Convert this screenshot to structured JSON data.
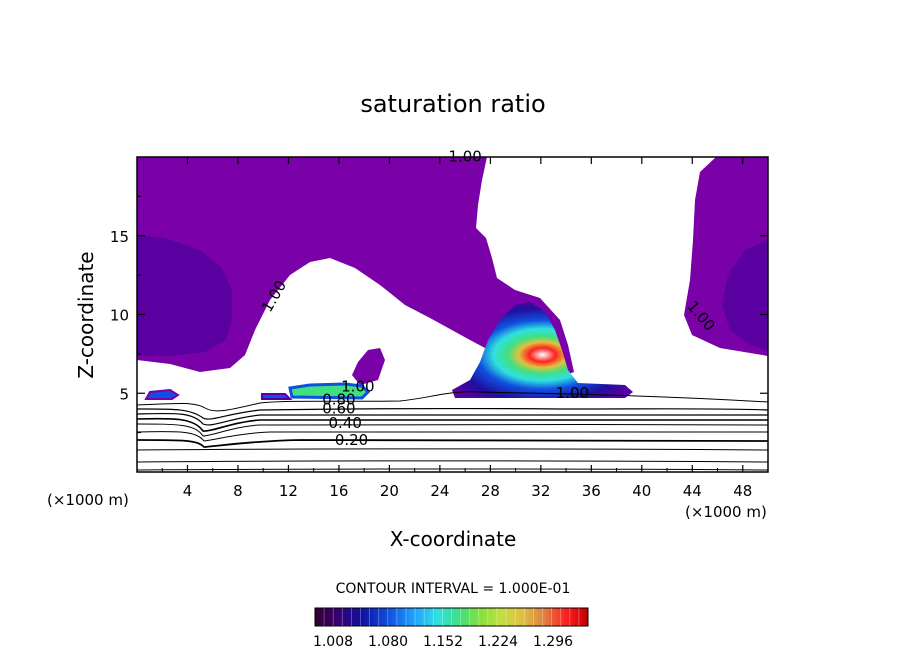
{
  "chart_data": {
    "type": "contour",
    "title": "saturation ratio",
    "xlabel": "X-coordinate",
    "ylabel": "Z-coordinate",
    "x_unit": "(×1000 m)",
    "x_ticks": [
      4,
      8,
      12,
      16,
      20,
      24,
      28,
      32,
      36,
      40,
      44,
      48
    ],
    "y_ticks": [
      5,
      10,
      15
    ],
    "xlim": [
      0,
      50
    ],
    "ylim": [
      0,
      20
    ],
    "contour_labels": [
      {
        "text": "1.00",
        "x": 26.0,
        "z": 19.7
      },
      {
        "text": "1.00",
        "x": 11.2,
        "z": 11.0
      },
      {
        "text": "1.00",
        "x": 44.4,
        "z": 9.7
      },
      {
        "text": "1.00",
        "x": 17.5,
        "z": 5.1
      },
      {
        "text": "1.00",
        "x": 34.5,
        "z": 4.7
      },
      {
        "text": "0.80",
        "x": 16.0,
        "z": 4.3
      },
      {
        "text": "0.60",
        "x": 16.0,
        "z": 3.7
      },
      {
        "text": "0.40",
        "x": 16.5,
        "z": 2.8
      },
      {
        "text": "0.20",
        "x": 17.0,
        "z": 1.7
      }
    ],
    "contour_interval_text": "CONTOUR INTERVAL = 1.000E-01",
    "colorbar": {
      "tick_labels": [
        "1.008",
        "1.080",
        "1.152",
        "1.224",
        "1.296"
      ],
      "colors": [
        "#300030",
        "#3a0070",
        "#1010a0",
        "#1050e0",
        "#20a0ff",
        "#30e0e0",
        "#40e080",
        "#80e040",
        "#c0e040",
        "#e0c040",
        "#e08040",
        "#ff2020",
        "#e00000",
        "#c00000"
      ]
    },
    "fill_colors": {
      "subsaturated_purple": "#7a00a8",
      "deep_purple": "#5a00a0",
      "white": "#ffffff"
    }
  }
}
